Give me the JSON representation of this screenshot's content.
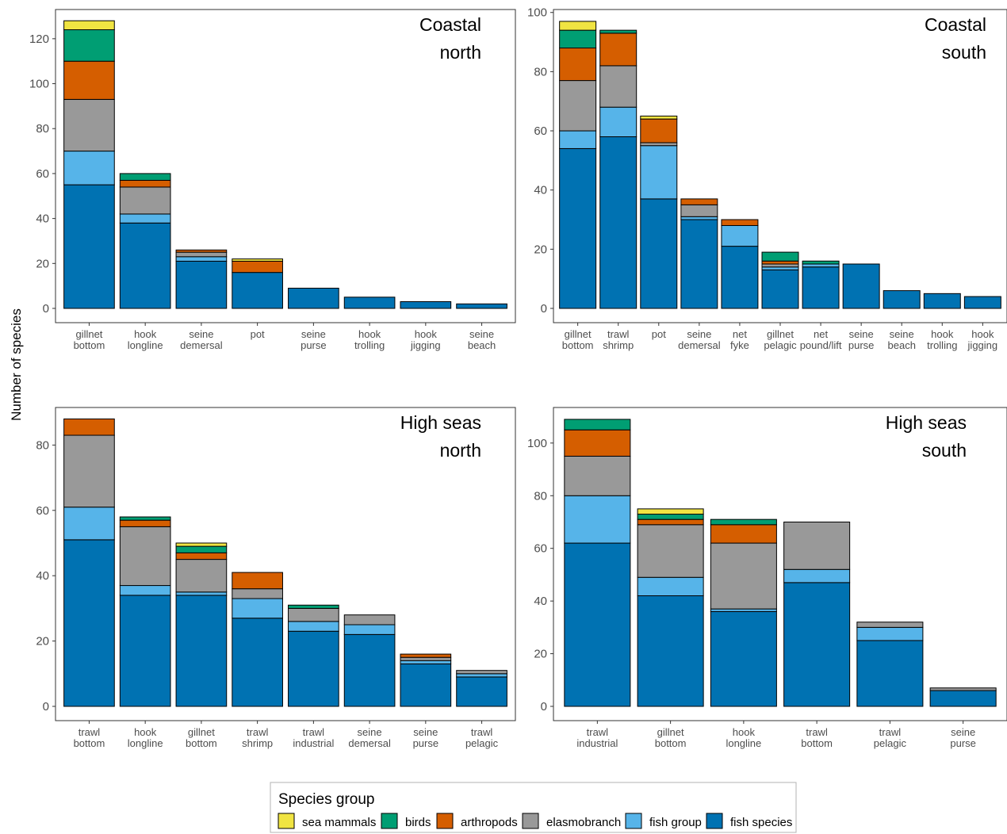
{
  "ylabel": "Number of species",
  "legend": {
    "title": "Species group",
    "entries": [
      {
        "name": "sea mammals",
        "color": "#F0E442"
      },
      {
        "name": "birds",
        "color": "#009E73"
      },
      {
        "name": "arthropods",
        "color": "#D55E00"
      },
      {
        "name": "elasmobranch",
        "color": "#999999"
      },
      {
        "name": "fish group",
        "color": "#56B4E9"
      },
      {
        "name": "fish species",
        "color": "#0072B2"
      }
    ]
  },
  "chart_data": [
    {
      "type": "bar",
      "stacked": true,
      "title_lines": [
        "Coastal",
        "north"
      ],
      "ylim": [
        0,
        133
      ],
      "yticks": [
        0,
        20,
        40,
        60,
        80,
        100,
        120
      ],
      "categories": [
        [
          "gillnet",
          "bottom"
        ],
        [
          "hook",
          "longline"
        ],
        [
          "seine",
          "demersal"
        ],
        [
          "pot"
        ],
        [
          "seine",
          "purse"
        ],
        [
          "hook",
          "trolling"
        ],
        [
          "hook",
          "jigging"
        ],
        [
          "seine",
          "beach"
        ]
      ],
      "series": [
        {
          "name": "fish species",
          "values": [
            55,
            38,
            21,
            16,
            9,
            5,
            3,
            2
          ]
        },
        {
          "name": "fish group",
          "values": [
            15,
            4,
            2,
            0,
            0,
            0,
            0,
            0
          ]
        },
        {
          "name": "elasmobranch",
          "values": [
            23,
            12,
            2,
            0,
            0,
            0,
            0,
            0
          ]
        },
        {
          "name": "arthropods",
          "values": [
            17,
            3,
            1,
            5,
            0,
            0,
            0,
            0
          ]
        },
        {
          "name": "birds",
          "values": [
            14,
            3,
            0,
            0,
            0,
            0,
            0,
            0
          ]
        },
        {
          "name": "sea mammals",
          "values": [
            4,
            0,
            0,
            1,
            0,
            0,
            0,
            0
          ]
        }
      ]
    },
    {
      "type": "bar",
      "stacked": true,
      "title_lines": [
        "Coastal",
        "south"
      ],
      "ylim": [
        0,
        101
      ],
      "yticks": [
        0,
        20,
        40,
        60,
        80,
        100
      ],
      "categories": [
        [
          "gillnet",
          "bottom"
        ],
        [
          "trawl",
          "shrimp"
        ],
        [
          "pot"
        ],
        [
          "seine",
          "demersal"
        ],
        [
          "net",
          "fyke"
        ],
        [
          "gillnet",
          "pelagic"
        ],
        [
          "net",
          "pound/lift"
        ],
        [
          "seine",
          "purse"
        ],
        [
          "seine",
          "beach"
        ],
        [
          "hook",
          "trolling"
        ],
        [
          "hook",
          "jigging"
        ]
      ],
      "series": [
        {
          "name": "fish species",
          "values": [
            54,
            58,
            37,
            30,
            21,
            13,
            14,
            15,
            6,
            5,
            4
          ]
        },
        {
          "name": "fish group",
          "values": [
            6,
            10,
            18,
            1,
            7,
            1,
            1,
            0,
            0,
            0,
            0
          ]
        },
        {
          "name": "elasmobranch",
          "values": [
            17,
            14,
            1,
            4,
            0,
            1,
            0,
            0,
            0,
            0,
            0
          ]
        },
        {
          "name": "arthropods",
          "values": [
            11,
            11,
            8,
            2,
            2,
            1,
            0,
            0,
            0,
            0,
            0
          ]
        },
        {
          "name": "birds",
          "values": [
            6,
            1,
            0,
            0,
            0,
            3,
            1,
            0,
            0,
            0,
            0
          ]
        },
        {
          "name": "sea mammals",
          "values": [
            3,
            0,
            1,
            0,
            0,
            0,
            0,
            0,
            0,
            0,
            0
          ]
        }
      ]
    },
    {
      "type": "bar",
      "stacked": true,
      "title_lines": [
        "High seas",
        "north"
      ],
      "ylim": [
        0,
        91.5
      ],
      "yticks": [
        0,
        20,
        40,
        60,
        80
      ],
      "categories": [
        [
          "trawl",
          "bottom"
        ],
        [
          "hook",
          "longline"
        ],
        [
          "gillnet",
          "bottom"
        ],
        [
          "trawl",
          "shrimp"
        ],
        [
          "trawl",
          "industrial"
        ],
        [
          "seine",
          "demersal"
        ],
        [
          "seine",
          "purse"
        ],
        [
          "trawl",
          "pelagic"
        ]
      ],
      "series": [
        {
          "name": "fish species",
          "values": [
            51,
            34,
            34,
            27,
            23,
            22,
            13,
            9
          ]
        },
        {
          "name": "fish group",
          "values": [
            10,
            3,
            1,
            6,
            3,
            3,
            1,
            1
          ]
        },
        {
          "name": "elasmobranch",
          "values": [
            22,
            18,
            10,
            3,
            4,
            3,
            1,
            1
          ]
        },
        {
          "name": "arthropods",
          "values": [
            5,
            2,
            2,
            5,
            0,
            0,
            1,
            0
          ]
        },
        {
          "name": "birds",
          "values": [
            0,
            1,
            2,
            0,
            1,
            0,
            0,
            0
          ]
        },
        {
          "name": "sea mammals",
          "values": [
            0,
            0,
            1,
            0,
            0,
            0,
            0,
            0
          ]
        }
      ]
    },
    {
      "type": "bar",
      "stacked": true,
      "title_lines": [
        "High seas",
        "south"
      ],
      "ylim": [
        0,
        113.5
      ],
      "yticks": [
        0,
        20,
        40,
        60,
        80,
        100
      ],
      "categories": [
        [
          "trawl",
          "industrial"
        ],
        [
          "gillnet",
          "bottom"
        ],
        [
          "hook",
          "longline"
        ],
        [
          "trawl",
          "bottom"
        ],
        [
          "trawl",
          "pelagic"
        ],
        [
          "seine",
          "purse"
        ]
      ],
      "series": [
        {
          "name": "fish species",
          "values": [
            62,
            42,
            36,
            47,
            25,
            6
          ]
        },
        {
          "name": "fish group",
          "values": [
            18,
            7,
            1,
            5,
            5,
            0
          ]
        },
        {
          "name": "elasmobranch",
          "values": [
            15,
            20,
            25,
            18,
            2,
            1
          ]
        },
        {
          "name": "arthropods",
          "values": [
            10,
            2,
            7,
            0,
            0,
            0
          ]
        },
        {
          "name": "birds",
          "values": [
            4,
            2,
            2,
            0,
            0,
            0
          ]
        },
        {
          "name": "sea mammals",
          "values": [
            0,
            2,
            0,
            0,
            0,
            0
          ]
        }
      ]
    }
  ]
}
